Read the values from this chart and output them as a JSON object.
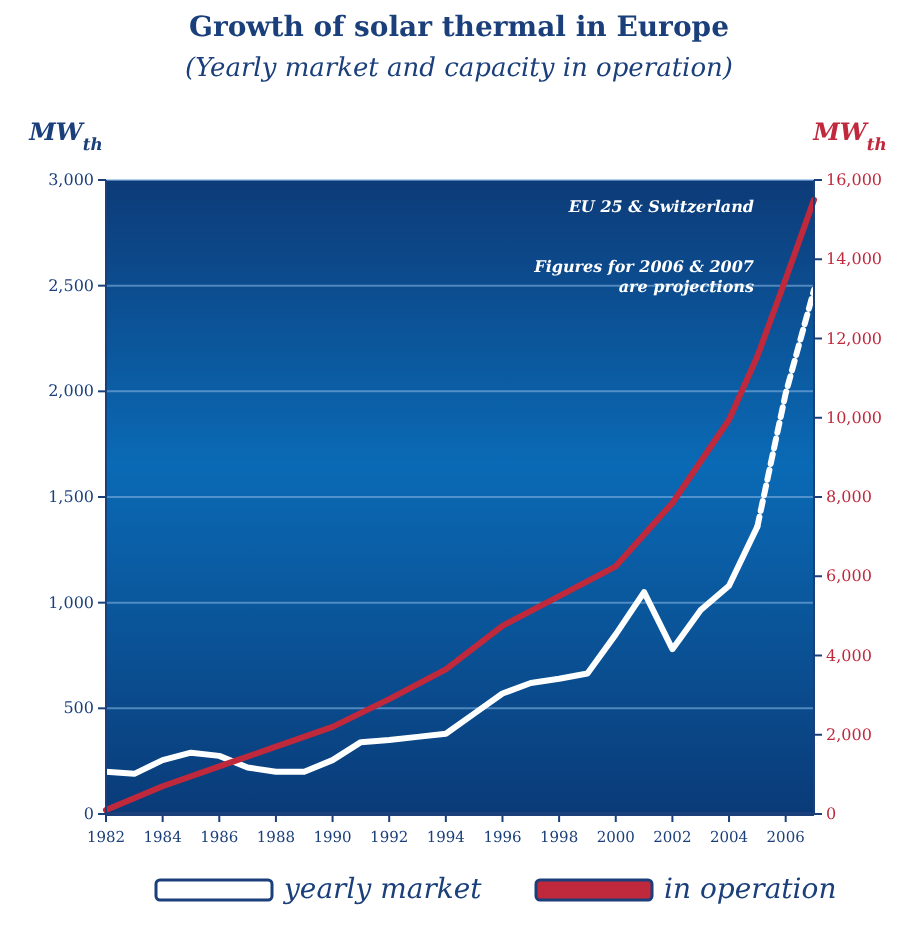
{
  "chart_data": {
    "type": "line",
    "title": "Growth of solar thermal in Europe",
    "subtitle": "(Yearly market and capacity in operation)",
    "ylabel": "MW$_{th}$",
    "y2label": "MW$_{th}$",
    "xlim": [
      1982,
      2007
    ],
    "xticks": [
      1982,
      1984,
      1986,
      1988,
      1990,
      1992,
      1994,
      1996,
      1998,
      2000,
      2002,
      2004,
      2006
    ],
    "ylim": [
      0,
      3000
    ],
    "yticks": [
      0,
      500,
      {
        "value": 1000,
        "label": "1,000"
      },
      {
        "value": 1500,
        "label": "1,500"
      },
      {
        "value": 2000,
        "label": "2,000"
      },
      {
        "value": 2500,
        "label": "2,500"
      },
      {
        "value": 3000,
        "label": "3,000"
      }
    ],
    "y2lim": [
      0,
      16000
    ],
    "y2ticks": [
      0,
      {
        "value": 2000,
        "label": "2,000"
      },
      {
        "value": 4000,
        "label": "4,000"
      },
      {
        "value": 6000,
        "label": "6,000"
      },
      {
        "value": 8000,
        "label": "8,000"
      },
      {
        "value": 10000,
        "label": "10,000"
      },
      {
        "value": 12000,
        "label": "12,000"
      },
      {
        "value": 14000,
        "label": "14,000"
      },
      {
        "value": 16000,
        "label": "16,000"
      }
    ],
    "grid": "y",
    "legend": "bottom",
    "line_style": "solid",
    "annotations": [
      "EU 25 & Switzerland",
      "Figures for 2006 & 2007 are projections"
    ],
    "series": [
      {
        "name": "yearly market",
        "color": "#ffffff",
        "x": [
          1982,
          1983,
          1984,
          1985,
          1986,
          1987,
          1988,
          1989,
          1990,
          1991,
          1992,
          1993,
          1994,
          1995,
          1996,
          1997,
          1998,
          1999,
          2000,
          2001,
          2002,
          2003,
          2004,
          2005
        ],
        "values": [
          200,
          190,
          255,
          290,
          275,
          220,
          200,
          200,
          255,
          340,
          350,
          365,
          380,
          475,
          570,
          620,
          640,
          665,
          850,
          1050,
          780,
          965,
          1080,
          1360
        ]
      },
      {
        "color": "#ffffff",
        "line_style": "dashed",
        "x": [
          2005,
          2006,
          2007
        ],
        "values": [
          1360,
          1990,
          2480
        ]
      },
      {
        "name": "in operation",
        "color": "#c0283c",
        "axis": "y2",
        "x": [
          1982,
          1984,
          1986,
          1988,
          1990,
          1992,
          1994,
          1996,
          1998,
          2000,
          2002,
          2004,
          2005,
          2006,
          2007
        ],
        "values": [
          100,
          700,
          1200,
          1700,
          2200,
          2900,
          3650,
          4750,
          5500,
          6250,
          7850,
          9950,
          11550,
          13500,
          15500
        ]
      }
    ]
  }
}
